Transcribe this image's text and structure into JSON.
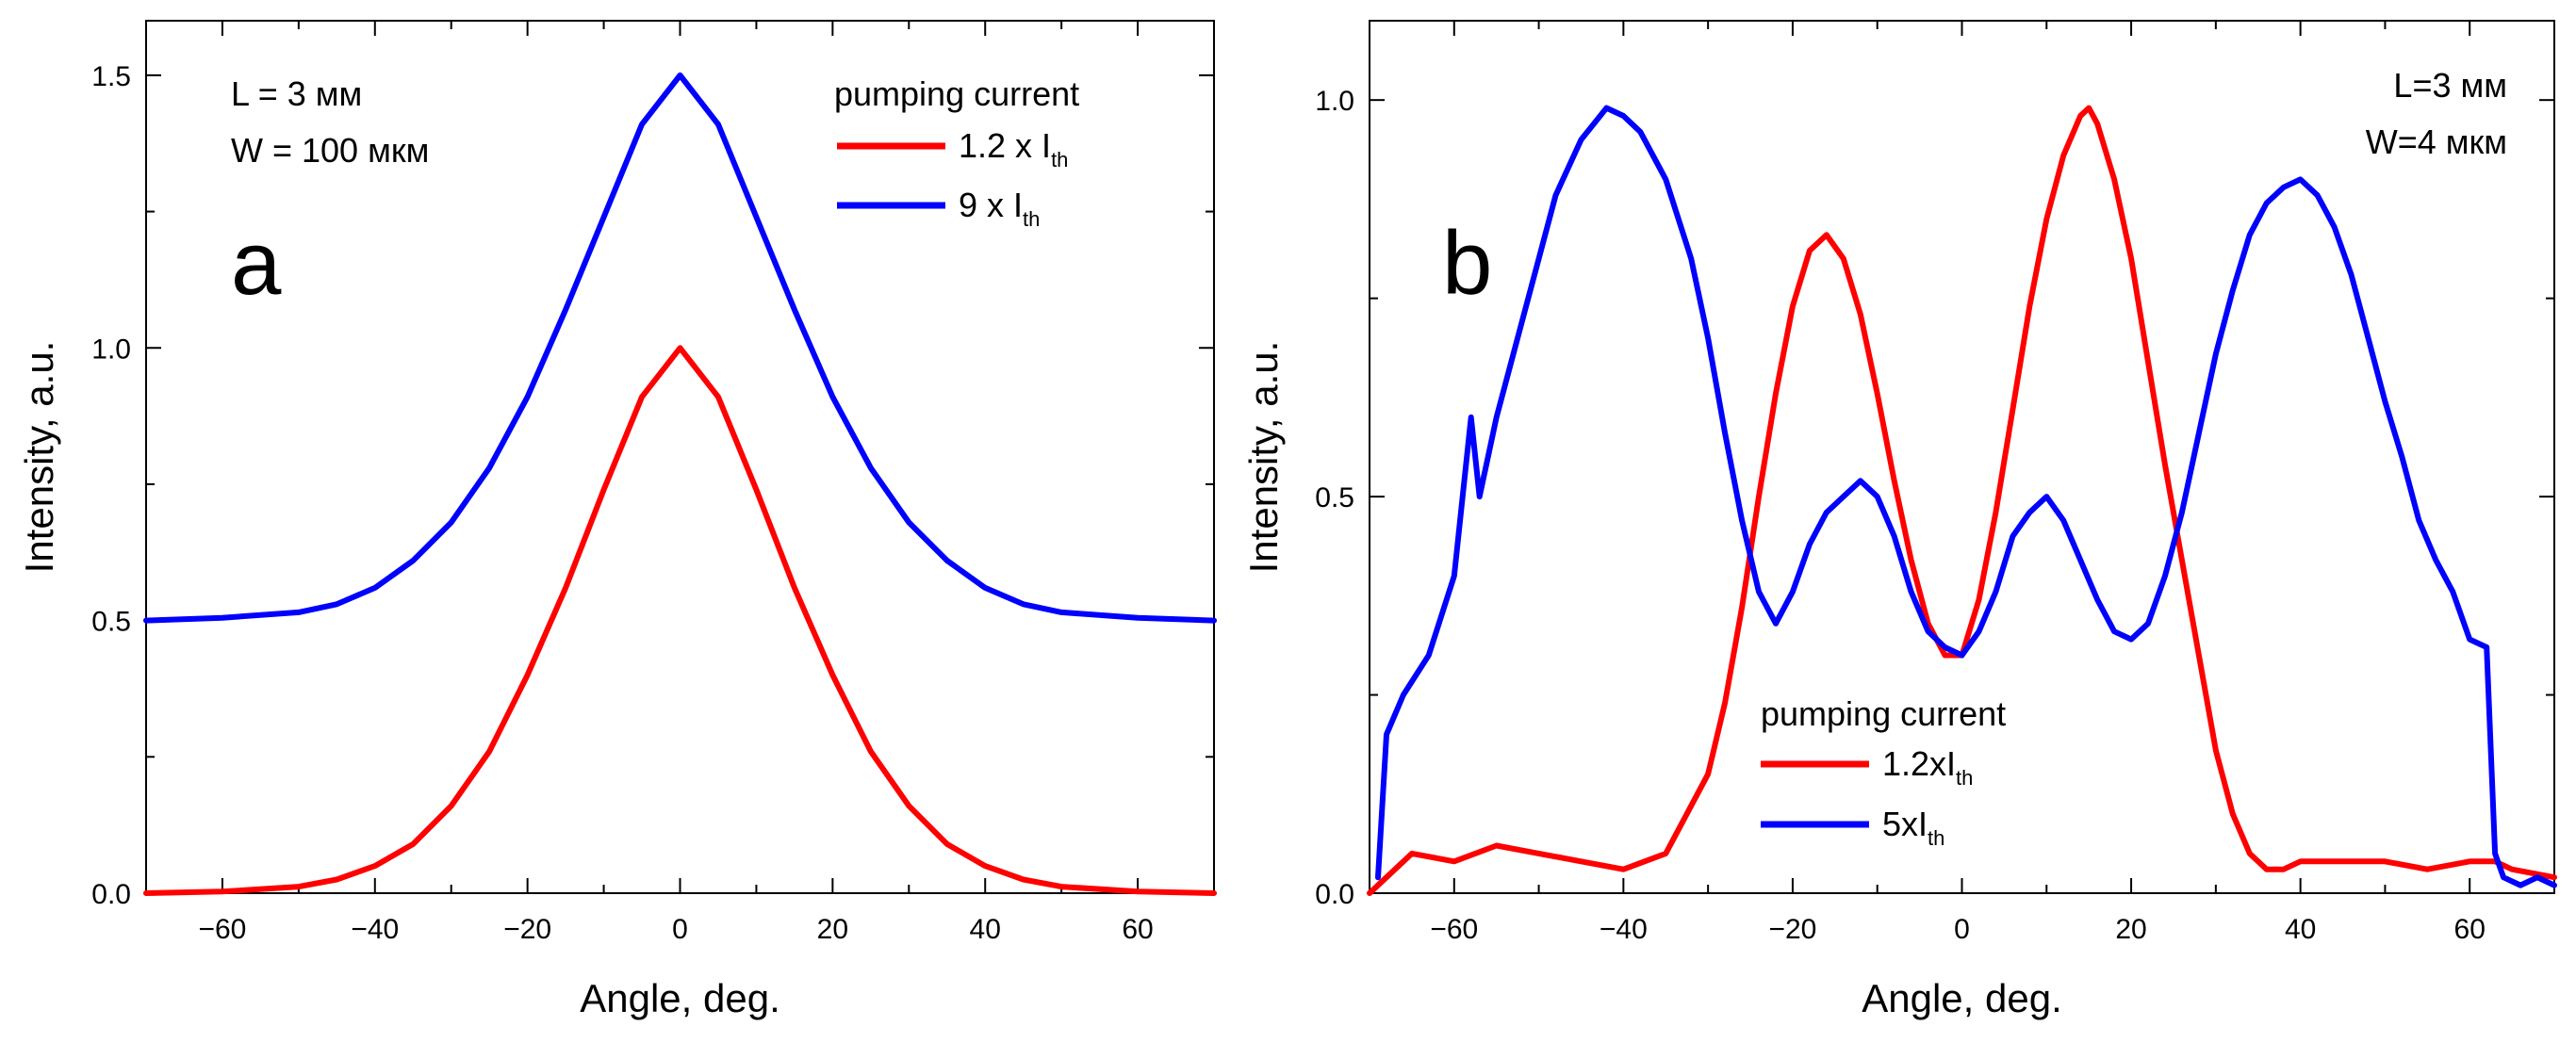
{
  "chart_data": [
    {
      "type": "line",
      "panel_label": "a",
      "xlabel": "Angle, deg.",
      "ylabel": "Intensity, a.u.",
      "xlim": [
        -70,
        70
      ],
      "ylim": [
        0,
        1.6
      ],
      "xticks": [
        -60,
        -40,
        -20,
        0,
        20,
        40,
        60
      ],
      "xtick_labels": [
        "−60",
        "−40",
        "−20",
        "0",
        "20",
        "40",
        "60"
      ],
      "yticks": [
        0,
        0.5,
        1.0,
        1.5
      ],
      "ytick_labels": [
        "0.0",
        "0.5",
        "1.0",
        "1.5"
      ],
      "annotations": [
        "L = 3 мм",
        "W = 100 мкм"
      ],
      "legend": {
        "title": "pumping current",
        "placement": "top-right"
      },
      "series": [
        {
          "name": "1.2 x I",
          "name_sub": "th",
          "color": "#ff0000",
          "x": [
            -70,
            -60,
            -50,
            -45,
            -40,
            -35,
            -30,
            -25,
            -20,
            -15,
            -10,
            -5,
            0,
            5,
            10,
            15,
            20,
            25,
            30,
            35,
            40,
            45,
            50,
            60,
            70
          ],
          "y": [
            0.0,
            0.003,
            0.012,
            0.025,
            0.05,
            0.09,
            0.16,
            0.26,
            0.4,
            0.56,
            0.74,
            0.91,
            1.0,
            0.91,
            0.74,
            0.56,
            0.4,
            0.26,
            0.16,
            0.09,
            0.05,
            0.025,
            0.012,
            0.003,
            0.0
          ]
        },
        {
          "name": "9 x I",
          "name_sub": "th",
          "color": "#0000ff",
          "x": [
            -70,
            -60,
            -50,
            -45,
            -40,
            -35,
            -30,
            -25,
            -20,
            -15,
            -10,
            -5,
            0,
            5,
            10,
            15,
            20,
            25,
            30,
            35,
            40,
            45,
            50,
            60,
            70
          ],
          "y": [
            0.5,
            0.505,
            0.515,
            0.53,
            0.56,
            0.61,
            0.68,
            0.78,
            0.91,
            1.07,
            1.24,
            1.41,
            1.5,
            1.41,
            1.24,
            1.07,
            0.91,
            0.78,
            0.68,
            0.61,
            0.56,
            0.53,
            0.515,
            0.505,
            0.5
          ]
        }
      ]
    },
    {
      "type": "line",
      "panel_label": "b",
      "xlabel": "Angle, deg.",
      "ylabel": "Intensity, a.u.",
      "xlim": [
        -70,
        70
      ],
      "ylim": [
        0,
        1.1
      ],
      "xticks": [
        -60,
        -40,
        -20,
        0,
        20,
        40,
        60
      ],
      "xtick_labels": [
        "−60",
        "−40",
        "−20",
        "0",
        "20",
        "40",
        "60"
      ],
      "yticks": [
        0,
        0.5,
        1.0
      ],
      "ytick_labels": [
        "0.0",
        "0.5",
        "1.0"
      ],
      "annotations": [
        "L=3 мм",
        "W=4 мкм"
      ],
      "legend": {
        "title": "pumping current",
        "placement": "bottom-center"
      },
      "series": [
        {
          "name": "1.2xI",
          "name_sub": "th",
          "color": "#ff0000",
          "x": [
            -70,
            -65,
            -60,
            -55,
            -50,
            -45,
            -40,
            -35,
            -30,
            -28,
            -26,
            -24,
            -22,
            -20,
            -18,
            -16,
            -14,
            -12,
            -10,
            -8,
            -6,
            -4,
            -2,
            0,
            2,
            4,
            6,
            8,
            10,
            12,
            14,
            15,
            16,
            18,
            20,
            22,
            24,
            26,
            28,
            30,
            32,
            34,
            36,
            38,
            40,
            45,
            50,
            55,
            60,
            63,
            65,
            70
          ],
          "y": [
            0.0,
            0.05,
            0.04,
            0.06,
            0.05,
            0.04,
            0.03,
            0.05,
            0.15,
            0.24,
            0.36,
            0.5,
            0.63,
            0.74,
            0.81,
            0.83,
            0.8,
            0.73,
            0.63,
            0.52,
            0.42,
            0.34,
            0.3,
            0.3,
            0.37,
            0.48,
            0.61,
            0.74,
            0.85,
            0.93,
            0.98,
            0.99,
            0.97,
            0.9,
            0.8,
            0.67,
            0.54,
            0.42,
            0.3,
            0.18,
            0.1,
            0.05,
            0.03,
            0.03,
            0.04,
            0.04,
            0.04,
            0.03,
            0.04,
            0.04,
            0.03,
            0.02
          ]
        },
        {
          "name": "5xI",
          "name_sub": "th",
          "color": "#0000ff",
          "x": [
            -69,
            -68,
            -66,
            -63,
            -60,
            -58,
            -57,
            -55,
            -52,
            -50,
            -48,
            -45,
            -42,
            -40,
            -38,
            -35,
            -32,
            -30,
            -28,
            -26,
            -24,
            -22,
            -20,
            -18,
            -16,
            -14,
            -12,
            -10,
            -8,
            -6,
            -4,
            -2,
            0,
            2,
            4,
            6,
            8,
            10,
            12,
            14,
            16,
            18,
            20,
            22,
            24,
            26,
            28,
            30,
            32,
            34,
            36,
            38,
            40,
            42,
            44,
            46,
            48,
            50,
            52,
            54,
            56,
            58,
            60,
            62,
            63,
            64,
            66,
            68,
            70
          ],
          "y": [
            0.02,
            0.2,
            0.25,
            0.3,
            0.4,
            0.6,
            0.5,
            0.6,
            0.72,
            0.8,
            0.88,
            0.95,
            0.99,
            0.98,
            0.96,
            0.9,
            0.8,
            0.7,
            0.58,
            0.47,
            0.38,
            0.34,
            0.38,
            0.44,
            0.48,
            0.5,
            0.52,
            0.5,
            0.45,
            0.38,
            0.33,
            0.31,
            0.3,
            0.33,
            0.38,
            0.45,
            0.48,
            0.5,
            0.47,
            0.42,
            0.37,
            0.33,
            0.32,
            0.34,
            0.4,
            0.48,
            0.58,
            0.68,
            0.76,
            0.83,
            0.87,
            0.89,
            0.9,
            0.88,
            0.84,
            0.78,
            0.7,
            0.62,
            0.55,
            0.47,
            0.42,
            0.38,
            0.32,
            0.31,
            0.05,
            0.02,
            0.01,
            0.02,
            0.01
          ]
        }
      ]
    }
  ]
}
